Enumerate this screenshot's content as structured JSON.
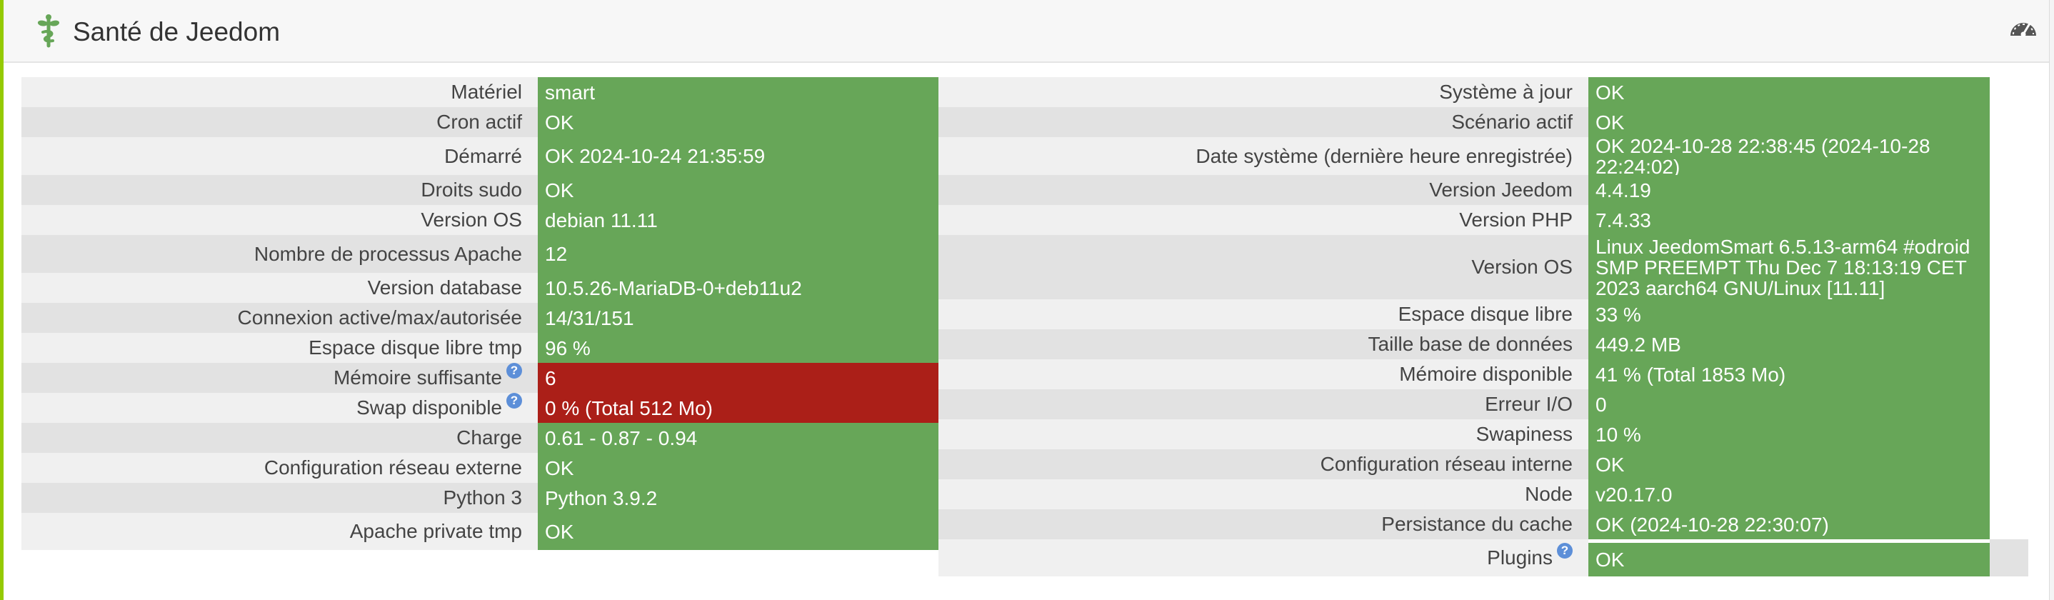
{
  "header": {
    "title": "Santé de Jeedom",
    "icon": "medkit-icon",
    "action_icon": "tachometer-icon",
    "accent_color": "#94ca02"
  },
  "status_colors": {
    "ok": "#67a658",
    "error": "#ab1f18"
  },
  "left": [
    {
      "label": "Matériel",
      "value": "smart",
      "status": "ok"
    },
    {
      "label": "Cron actif",
      "value": "OK",
      "status": "ok"
    },
    {
      "label": "Démarré",
      "value": "OK 2024-10-24 21:35:59",
      "status": "ok"
    },
    {
      "label": "Droits sudo",
      "value": "OK",
      "status": "ok"
    },
    {
      "label": "Version OS",
      "value": "debian 11.11",
      "status": "ok"
    },
    {
      "label": "Nombre de processus Apache",
      "value": "12",
      "status": "ok"
    },
    {
      "label": "Version database",
      "value": "10.5.26-MariaDB-0+deb11u2",
      "status": "ok"
    },
    {
      "label": "Connexion active/max/autorisée",
      "value": "14/31/151",
      "status": "ok"
    },
    {
      "label": "Espace disque libre tmp",
      "value": "96 %",
      "status": "ok"
    },
    {
      "label": "Mémoire suffisante",
      "value": "6",
      "status": "error",
      "help": "?"
    },
    {
      "label": "Swap disponible",
      "value": "0 % (Total 512 Mo)",
      "status": "error",
      "help": "?"
    },
    {
      "label": "Charge",
      "value": "0.61 - 0.87 - 0.94",
      "status": "ok"
    },
    {
      "label": "Configuration réseau externe",
      "value": "OK",
      "status": "ok"
    },
    {
      "label": "Python 3",
      "value": "Python 3.9.2",
      "status": "ok"
    },
    {
      "label": "Apache private tmp",
      "value": "OK",
      "status": "ok"
    }
  ],
  "right": [
    {
      "label": "Système à jour",
      "value": "OK",
      "status": "ok"
    },
    {
      "label": "Scénario actif",
      "value": "OK",
      "status": "ok"
    },
    {
      "label": "Date système (dernière heure enregistrée)",
      "value": "OK 2024-10-28 22:38:45 (2024-10-28 22:24:02)",
      "status": "ok"
    },
    {
      "label": "Version Jeedom",
      "value": "4.4.19",
      "status": "ok"
    },
    {
      "label": "Version PHP",
      "value": "7.4.33",
      "status": "ok"
    },
    {
      "label": "Version OS",
      "value": "Linux JeedomSmart 6.5.13-arm64 #odroid SMP PREEMPT Thu Dec 7 18:13:19 CET 2023 aarch64 GNU/Linux [11.11]",
      "status": "ok"
    },
    {
      "label": "Espace disque libre",
      "value": "33 %",
      "status": "ok"
    },
    {
      "label": "Taille base de données",
      "value": "449.2 MB",
      "status": "ok"
    },
    {
      "label": "Mémoire disponible",
      "value": "41 % (Total 1853 Mo)",
      "status": "ok"
    },
    {
      "label": "Erreur I/O",
      "value": "0",
      "status": "ok"
    },
    {
      "label": "Swapiness",
      "value": "10 %",
      "status": "ok"
    },
    {
      "label": "Configuration réseau interne",
      "value": "OK",
      "status": "ok"
    },
    {
      "label": "Node",
      "value": "v20.17.0",
      "status": "ok"
    },
    {
      "label": "Persistance du cache",
      "value": "OK (2024-10-28 22:30:07)",
      "status": "ok"
    },
    {
      "label": "Plugins",
      "value": "OK",
      "status": "ok",
      "help": "?"
    }
  ]
}
